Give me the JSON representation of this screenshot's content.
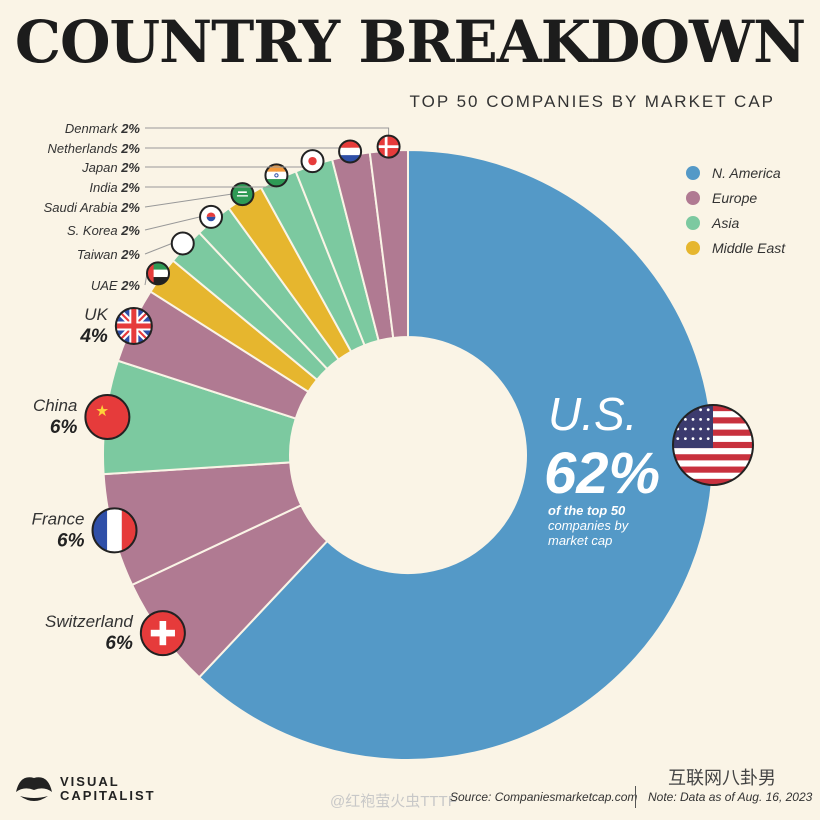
{
  "header": {
    "title": "COUNTRY BREAKDOWN",
    "subtitle": "TOP 50 COMPANIES BY MARKET CAP"
  },
  "legend": [
    {
      "label": "N. America",
      "color": "#5499c7"
    },
    {
      "label": "Europe",
      "color": "#b07a92"
    },
    {
      "label": "Asia",
      "color": "#7cc9a0"
    },
    {
      "label": "Middle East",
      "color": "#e6b62e"
    }
  ],
  "chart_data": {
    "type": "pie",
    "title": "COUNTRY BREAKDOWN",
    "subtitle": "TOP 50 COMPANIES BY MARKET CAP",
    "unit": "%",
    "slices": [
      {
        "label": "U.S.",
        "value": 62,
        "region": "N. America"
      },
      {
        "label": "Switzerland",
        "value": 6,
        "region": "Europe"
      },
      {
        "label": "France",
        "value": 6,
        "region": "Europe"
      },
      {
        "label": "China",
        "value": 6,
        "region": "Asia"
      },
      {
        "label": "UK",
        "value": 4,
        "region": "Europe"
      },
      {
        "label": "UAE",
        "value": 2,
        "region": "Middle East"
      },
      {
        "label": "Taiwan",
        "value": 2,
        "region": "Asia"
      },
      {
        "label": "S. Korea",
        "value": 2,
        "region": "Asia"
      },
      {
        "label": "Saudi Arabia",
        "value": 2,
        "region": "Middle East"
      },
      {
        "label": "India",
        "value": 2,
        "region": "Asia"
      },
      {
        "label": "Japan",
        "value": 2,
        "region": "Asia"
      },
      {
        "label": "Netherlands",
        "value": 2,
        "region": "Europe"
      },
      {
        "label": "Denmark",
        "value": 2,
        "region": "Europe"
      }
    ],
    "slice_labels": [
      "U.S.",
      "Switzerland",
      "France",
      "China",
      "UK",
      "UAE",
      "Taiwan",
      "S. Korea",
      "Saudi Arabia",
      "India",
      "Japan",
      "Netherlands",
      "Denmark"
    ],
    "slice_values": [
      "62%",
      "6%",
      "6%",
      "6%",
      "4%",
      "2%",
      "2%",
      "2%",
      "2%",
      "2%",
      "2%",
      "2%",
      "2%"
    ],
    "center_annotation": {
      "country": "U.S.",
      "value": "62%",
      "desc": [
        "of the top 50",
        "companies by",
        "market cap"
      ]
    }
  },
  "footer": {
    "logo_line1": "VISUAL",
    "logo_line2": "CAPITALIST",
    "source": "Source: Companiesmarketcap.com",
    "note": "Note: Data as of Aug. 16, 2023",
    "watermark_weibo": "@红袍萤火虫TTTF",
    "watermark_wechat": "互联网八卦男"
  }
}
